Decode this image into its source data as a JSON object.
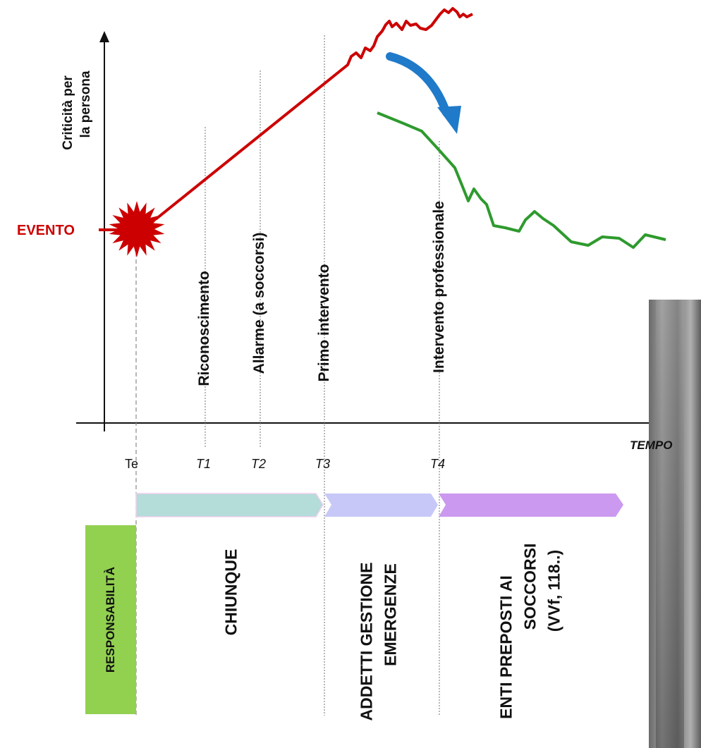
{
  "axis": {
    "y_label_line1": "Criticità per",
    "y_label_line2": "la persona",
    "x_label": "TEMPO"
  },
  "event_label": "EVENTO",
  "times": [
    {
      "id": "te",
      "label": "Te"
    },
    {
      "id": "t1",
      "label": "T1"
    },
    {
      "id": "t2",
      "label": "T2"
    },
    {
      "id": "t3",
      "label": "T3"
    },
    {
      "id": "t4",
      "label": "T4"
    }
  ],
  "phases": [
    {
      "id": "riconoscimento",
      "label": "Riconoscimento"
    },
    {
      "id": "allarme",
      "label": "Allarme (a soccorsi)"
    },
    {
      "id": "primo",
      "label": "Primo intervento"
    },
    {
      "id": "professionale",
      "label": "Intervento professionale"
    }
  ],
  "responsibility": {
    "header": "RESPONSABILITÀ",
    "groups": [
      {
        "id": "chiunque",
        "lines": [
          "CHIUNQUE"
        ]
      },
      {
        "id": "addetti",
        "lines": [
          "ADDETTI GESTIONE",
          "EMERGENZE"
        ]
      },
      {
        "id": "enti",
        "lines": [
          "ENTI PREPOSTI AI",
          "SOCCORSI",
          "(VVf, 118..)"
        ]
      }
    ]
  },
  "colors": {
    "red_curve": "#cc0000",
    "green_curve": "#2e9a2e",
    "blue_arrow": "#1f7ac9",
    "arrow1": "#b4dcd8",
    "arrow2": "#c8c8f8",
    "arrow3": "#cc99f0",
    "resp_box": "#92d050"
  }
}
